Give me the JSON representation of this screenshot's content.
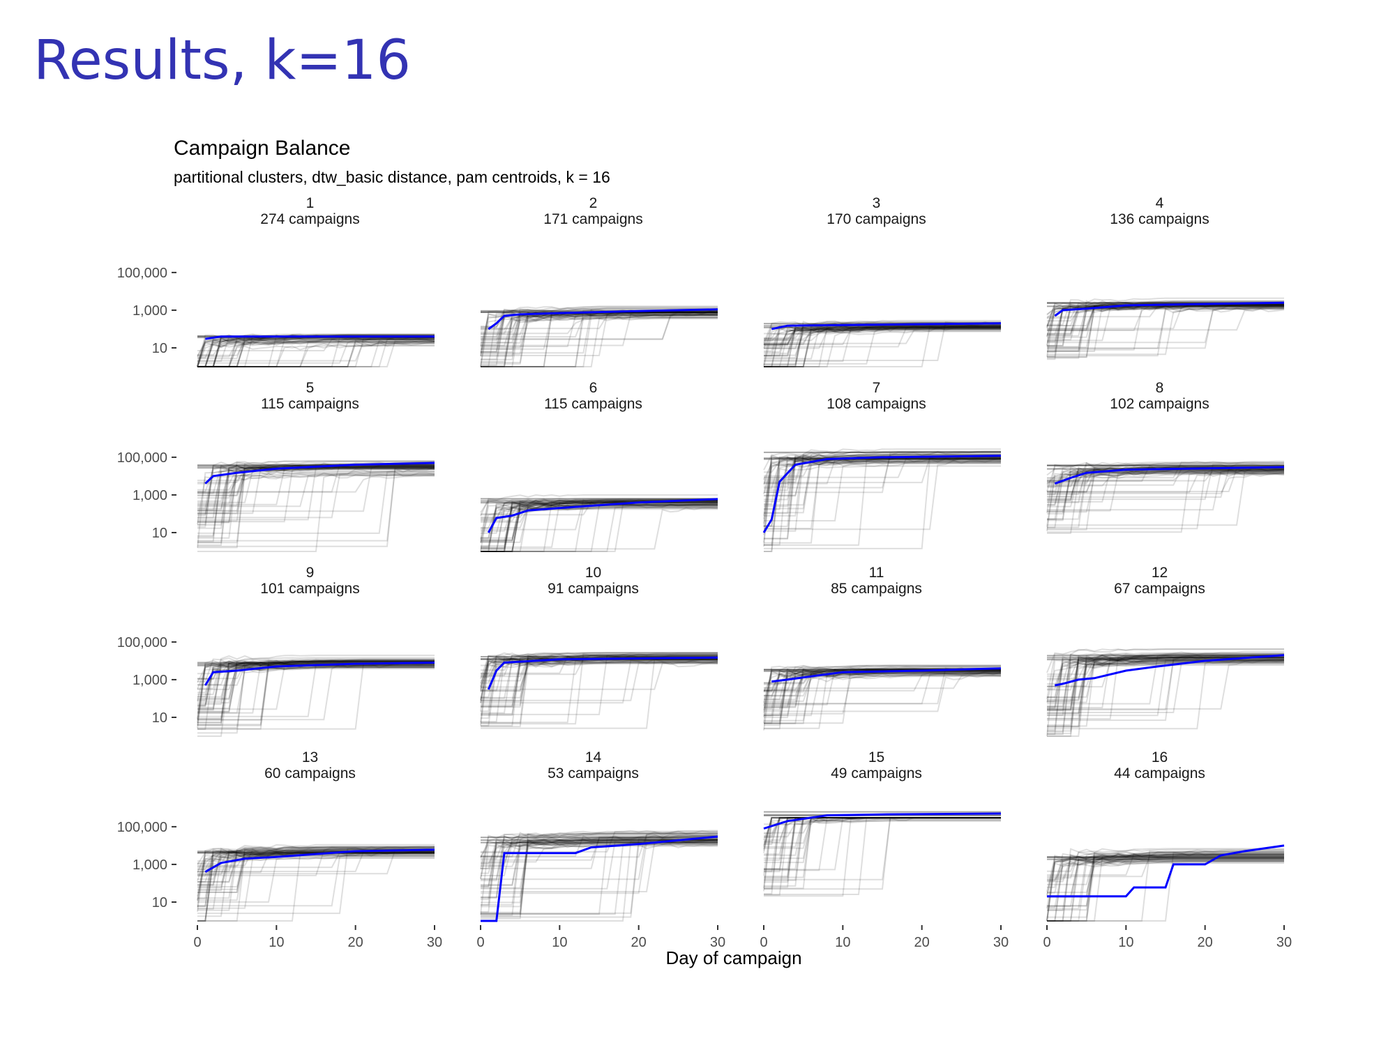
{
  "slide": {
    "title": "Results, k=16"
  },
  "chart_data": {
    "type": "line",
    "title": "Campaign Balance",
    "subtitle": "partitional clusters, dtw_basic distance, pam centroids, k = 16",
    "xlabel": "Day of campaign",
    "ylabel": "",
    "y_scale": "log10",
    "xlim": [
      0,
      30
    ],
    "ylim": [
      1,
      300000
    ],
    "x_ticks": [
      0,
      10,
      20,
      30
    ],
    "y_ticks": [
      10,
      1000,
      100000
    ],
    "y_tick_labels": [
      "10",
      "1,000",
      "100,000"
    ],
    "x_tick_labels": [
      "0",
      "10",
      "20",
      "30"
    ],
    "grid": false,
    "colors": {
      "centroid": "#0000ff",
      "member": "#000000",
      "title": "#3333b3"
    },
    "panels": [
      {
        "id": "1",
        "label": "274 campaigns",
        "n": 274,
        "level": 30,
        "spread": 0.7,
        "centroid": [
          [
            1,
            30
          ],
          [
            3,
            40
          ],
          [
            30,
            40
          ]
        ]
      },
      {
        "id": "2",
        "label": "171 campaigns",
        "n": 171,
        "level": 700,
        "spread": 0.8,
        "centroid": [
          [
            1,
            100
          ],
          [
            2,
            200
          ],
          [
            3,
            500
          ],
          [
            5,
            600
          ],
          [
            10,
            700
          ],
          [
            20,
            900
          ],
          [
            30,
            1100
          ]
        ]
      },
      {
        "id": "3",
        "label": "170 campaigns",
        "n": 170,
        "level": 150,
        "spread": 0.6,
        "centroid": [
          [
            1,
            100
          ],
          [
            3,
            150
          ],
          [
            30,
            200
          ]
        ]
      },
      {
        "id": "4",
        "label": "136 campaigns",
        "n": 136,
        "level": 2000,
        "spread": 0.6,
        "centroid": [
          [
            1,
            500
          ],
          [
            2,
            1000
          ],
          [
            5,
            1200
          ],
          [
            10,
            1800
          ],
          [
            30,
            2500
          ]
        ]
      },
      {
        "id": "5",
        "label": "115 campaigns",
        "n": 115,
        "level": 30000,
        "spread": 0.9,
        "centroid": [
          [
            1,
            4000
          ],
          [
            2,
            10000
          ],
          [
            5,
            15000
          ],
          [
            10,
            25000
          ],
          [
            20,
            40000
          ],
          [
            30,
            50000
          ]
        ]
      },
      {
        "id": "6",
        "label": "115 campaigns",
        "n": 115,
        "level": 400,
        "spread": 0.8,
        "centroid": [
          [
            1,
            10
          ],
          [
            2,
            60
          ],
          [
            4,
            80
          ],
          [
            6,
            150
          ],
          [
            10,
            200
          ],
          [
            20,
            400
          ],
          [
            30,
            600
          ]
        ]
      },
      {
        "id": "7",
        "label": "108 campaigns",
        "n": 108,
        "level": 100000,
        "spread": 1.0,
        "centroid": [
          [
            0,
            10
          ],
          [
            1,
            50
          ],
          [
            2,
            5000
          ],
          [
            4,
            40000
          ],
          [
            8,
            80000
          ],
          [
            15,
            100000
          ],
          [
            30,
            120000
          ]
        ]
      },
      {
        "id": "8",
        "label": "102 campaigns",
        "n": 102,
        "level": 25000,
        "spread": 0.7,
        "centroid": [
          [
            1,
            4000
          ],
          [
            3,
            8000
          ],
          [
            5,
            15000
          ],
          [
            10,
            22000
          ],
          [
            30,
            30000
          ]
        ]
      },
      {
        "id": "9",
        "label": "101 campaigns",
        "n": 101,
        "level": 8000,
        "spread": 0.8,
        "centroid": [
          [
            1,
            500
          ],
          [
            2,
            2500
          ],
          [
            5,
            3000
          ],
          [
            10,
            5000
          ],
          [
            20,
            7000
          ],
          [
            30,
            8000
          ]
        ]
      },
      {
        "id": "10",
        "label": "91 campaigns",
        "n": 91,
        "level": 15000,
        "spread": 0.8,
        "centroid": [
          [
            1,
            300
          ],
          [
            2,
            3000
          ],
          [
            3,
            8000
          ],
          [
            10,
            12000
          ],
          [
            30,
            15000
          ]
        ]
      },
      {
        "id": "11",
        "label": "85 campaigns",
        "n": 85,
        "level": 3000,
        "spread": 0.7,
        "centroid": [
          [
            1,
            800
          ],
          [
            3,
            1000
          ],
          [
            6,
            1500
          ],
          [
            10,
            2500
          ],
          [
            20,
            3000
          ],
          [
            30,
            4000
          ]
        ]
      },
      {
        "id": "12",
        "label": "67 campaigns",
        "n": 67,
        "level": 15000,
        "spread": 0.9,
        "centroid": [
          [
            1,
            500
          ],
          [
            2,
            600
          ],
          [
            4,
            1000
          ],
          [
            6,
            1200
          ],
          [
            10,
            3000
          ],
          [
            14,
            5000
          ],
          [
            20,
            10000
          ],
          [
            30,
            20000
          ]
        ]
      },
      {
        "id": "13",
        "label": "60 campaigns",
        "n": 60,
        "level": 5000,
        "spread": 0.8,
        "centroid": [
          [
            1,
            400
          ],
          [
            3,
            1200
          ],
          [
            6,
            2000
          ],
          [
            10,
            2500
          ],
          [
            20,
            5000
          ],
          [
            30,
            6000
          ]
        ]
      },
      {
        "id": "14",
        "label": "53 campaigns",
        "n": 53,
        "level": 20000,
        "spread": 0.9,
        "centroid": [
          [
            0,
            1
          ],
          [
            2,
            1
          ],
          [
            3,
            4000
          ],
          [
            12,
            4000
          ],
          [
            14,
            8000
          ],
          [
            20,
            12000
          ],
          [
            30,
            30000
          ]
        ]
      },
      {
        "id": "15",
        "label": "49 campaigns",
        "n": 49,
        "level": 500000,
        "spread": 0.9,
        "centroid": [
          [
            0,
            80000
          ],
          [
            3,
            200000
          ],
          [
            8,
            400000
          ],
          [
            15,
            450000
          ],
          [
            30,
            500000
          ]
        ]
      },
      {
        "id": "16",
        "label": "44 campaigns",
        "n": 44,
        "level": 3000,
        "spread": 1.0,
        "centroid": [
          [
            0,
            20
          ],
          [
            10,
            20
          ],
          [
            11,
            60
          ],
          [
            15,
            60
          ],
          [
            16,
            1000
          ],
          [
            20,
            1000
          ],
          [
            22,
            3000
          ],
          [
            25,
            5000
          ],
          [
            30,
            10000
          ]
        ]
      }
    ]
  }
}
